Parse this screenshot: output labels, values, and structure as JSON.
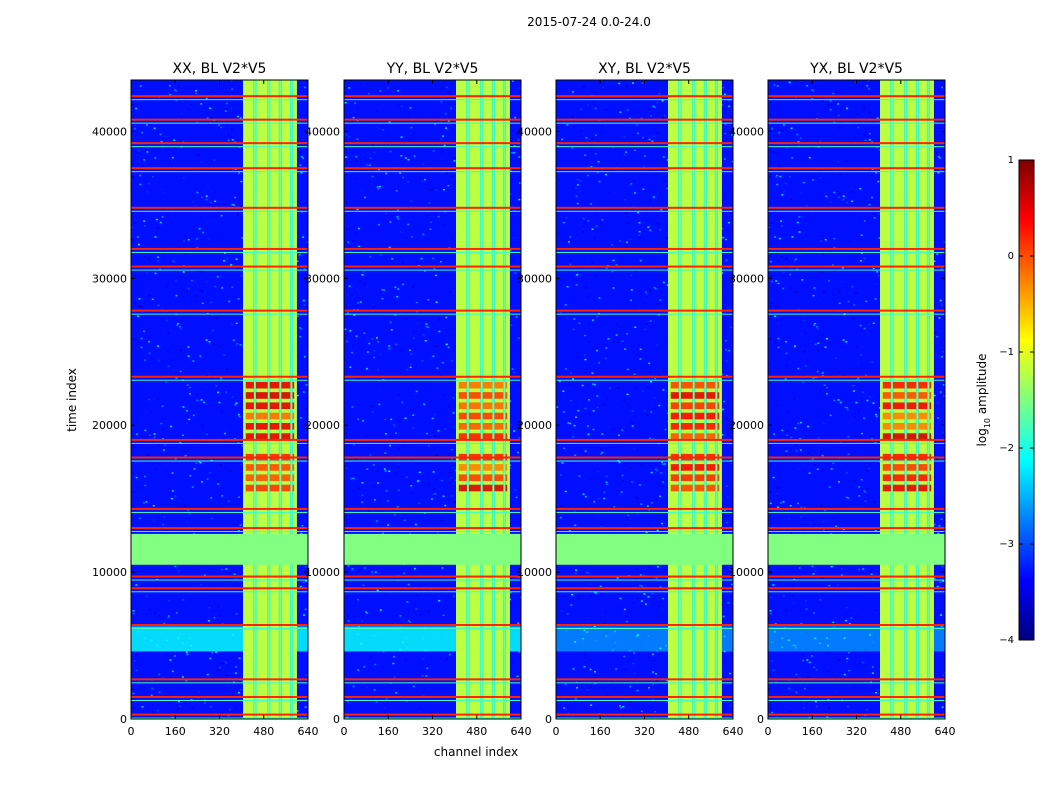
{
  "figure": {
    "suptitle": "2015-07-24 0.0-24.0",
    "xlabel": "channel index",
    "ylabel": "time index"
  },
  "colorbar": {
    "label_prefix": "log",
    "label_sub": "10",
    "label_suffix": " amplitude",
    "range": [
      -4,
      1
    ],
    "ticks": [
      "1",
      "0",
      "−1",
      "−2",
      "−3",
      "−4"
    ],
    "colormap": "jet",
    "colors": [
      "#00007f",
      "#0000ff",
      "#007fff",
      "#00ffff",
      "#7fff7f",
      "#ffff00",
      "#ff7f00",
      "#ff0000",
      "#7f0000"
    ]
  },
  "chart_data": [
    {
      "type": "heatmap",
      "title": "XX, BL V2*V5",
      "x_ticks": [
        "0",
        "160",
        "320",
        "480",
        "640"
      ],
      "y_ticks": [
        "0",
        "10000",
        "20000",
        "30000",
        "40000"
      ],
      "xlim": [
        0,
        640
      ],
      "ylim": [
        0,
        43500
      ]
    },
    {
      "type": "heatmap",
      "title": "YY, BL V2*V5",
      "x_ticks": [
        "0",
        "160",
        "320",
        "480",
        "640"
      ],
      "y_ticks": [
        "0",
        "10000",
        "20000",
        "30000",
        "40000"
      ],
      "xlim": [
        0,
        640
      ],
      "ylim": [
        0,
        43500
      ]
    },
    {
      "type": "heatmap",
      "title": "XY, BL V2*V5",
      "x_ticks": [
        "0",
        "160",
        "320",
        "480",
        "640"
      ],
      "y_ticks": [
        "0",
        "10000",
        "20000",
        "30000",
        "40000"
      ],
      "xlim": [
        0,
        640
      ],
      "ylim": [
        0,
        43500
      ]
    },
    {
      "type": "heatmap",
      "title": "YX, BL V2*V5",
      "x_ticks": [
        "0",
        "160",
        "320",
        "480",
        "640"
      ],
      "y_ticks": [
        "0",
        "10000",
        "20000",
        "30000",
        "40000"
      ],
      "xlim": [
        0,
        640
      ],
      "ylim": [
        0,
        43500
      ]
    }
  ],
  "heatmap_features": {
    "background_level": -3.3,
    "flagged_time_range": [
      10500,
      12600
    ],
    "flagged_level": -1.5,
    "bright_channel_range": [
      405,
      600
    ],
    "bright_level": -1.2,
    "gap_channels": [
      448,
      498,
      540,
      580
    ],
    "rfi_time_rows": [
      300,
      1500,
      2700,
      6400,
      8900,
      9700,
      13000,
      14300,
      17800,
      19000,
      23300,
      27800,
      30800,
      32000,
      34800,
      37500,
      39200,
      40800,
      42400
    ],
    "rfi_level": 0.2,
    "hot_time_ranges": [
      [
        15500,
        18000
      ],
      [
        19000,
        23000
      ]
    ],
    "hot_level": 0.6,
    "wide_band_time_range": [
      4600,
      6300
    ],
    "wide_band_level": -2.1
  }
}
